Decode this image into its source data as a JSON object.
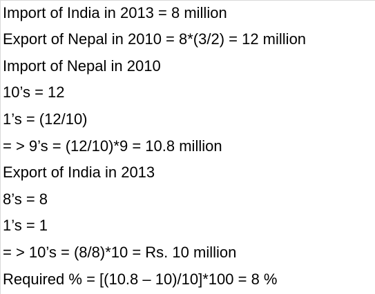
{
  "lines": [
    "Import of India in 2013 = 8 million",
    "Export of Nepal in 2010 = 8*(3/2) = 12 million",
    "Import of Nepal in 2010",
    "10’s = 12",
    "1’s = (12/10)",
    "= > 9’s = (12/10)*9 = 10.8 million",
    "Export of India in 2013",
    "8’s = 8",
    "1’s = 1",
    "= > 10’s = (8/8)*10 = Rs. 10 million",
    "Required % = [(10.8 – 10)/10]*100 = 8 %"
  ]
}
